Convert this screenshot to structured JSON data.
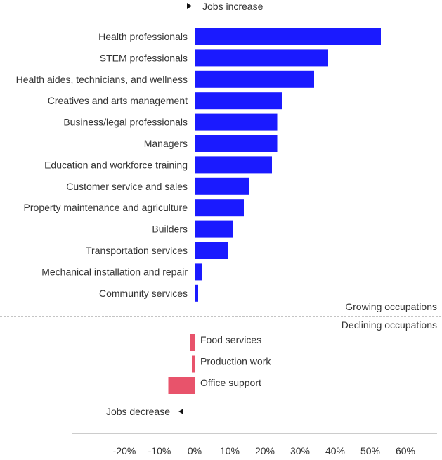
{
  "chart_data": {
    "type": "bar",
    "orientation": "horizontal",
    "increase_label": "Jobs increase",
    "decrease_label": "Jobs decrease",
    "growing_label": "Growing occupations",
    "declining_label": "Declining occupations",
    "colors": {
      "growing": "#1a1aff",
      "declining": "#e8536b",
      "divider": "#888888",
      "axis": "#999999"
    },
    "x_ticks": [
      "-20%",
      "-10%",
      "0%",
      "10%",
      "20%",
      "30%",
      "40%",
      "50%",
      "60%"
    ],
    "x_tick_values": [
      -20,
      -10,
      0,
      10,
      20,
      30,
      40,
      50,
      60
    ],
    "xlim": [
      -35,
      70
    ],
    "growing": [
      {
        "category": "Health professionals",
        "value": 53
      },
      {
        "category": "STEM professionals",
        "value": 38
      },
      {
        "category": "Health aides, technicians, and wellness",
        "value": 34
      },
      {
        "category": "Creatives and arts management",
        "value": 25
      },
      {
        "category": "Business/legal professionals",
        "value": 23.5
      },
      {
        "category": "Managers",
        "value": 23.5
      },
      {
        "category": "Education and workforce training",
        "value": 22
      },
      {
        "category": "Customer service and sales",
        "value": 15.5
      },
      {
        "category": "Property maintenance and agriculture",
        "value": 14
      },
      {
        "category": "Builders",
        "value": 11
      },
      {
        "category": "Transportation services",
        "value": 9.5
      },
      {
        "category": "Mechanical installation and repair",
        "value": 2
      },
      {
        "category": "Community services",
        "value": 1
      }
    ],
    "declining": [
      {
        "category": "Food services",
        "value": -1.2
      },
      {
        "category": "Production work",
        "value": -0.8
      },
      {
        "category": "Office support",
        "value": -7.5
      }
    ]
  }
}
